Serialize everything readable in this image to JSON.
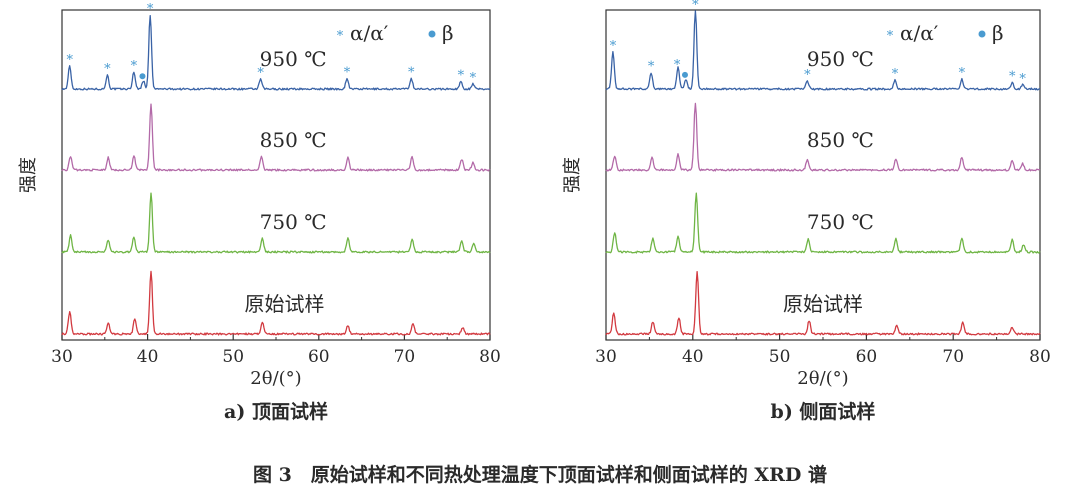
{
  "caption": "图 3　原始试样和不同热处理温度下顶面试样和侧面试样的 XRD 谱",
  "colors": {
    "950": "#3a63a6",
    "850": "#b36aa8",
    "750": "#6fb545",
    "original": "#d23a40",
    "marker": "#4a9bd0"
  },
  "chart_data": [
    {
      "type": "line",
      "panel_label": "a) 顶面试样",
      "xlabel": "2θ/(°)",
      "ylabel": "强度",
      "xlim": [
        30,
        80
      ],
      "x_ticks": [
        30,
        40,
        50,
        60,
        70,
        80
      ],
      "y_ticks": [],
      "grid": false,
      "legend": {
        "position": "top-right",
        "entries": [
          {
            "symbol": "*",
            "label": "α/α′"
          },
          {
            "symbol": "●",
            "label": "β"
          }
        ]
      },
      "series": [
        {
          "name": "950 ℃",
          "color": "#3a63a6",
          "label_x": 57,
          "peaks": [
            [
              30.9,
              0.28
            ],
            [
              35.3,
              0.17
            ],
            [
              38.4,
              0.21
            ],
            [
              39.5,
              0.1
            ],
            [
              40.3,
              0.9
            ],
            [
              53.2,
              0.12
            ],
            [
              63.3,
              0.13
            ],
            [
              70.8,
              0.13
            ],
            [
              76.6,
              0.09
            ],
            [
              78.0,
              0.06
            ]
          ]
        },
        {
          "name": "850 ℃",
          "color": "#b36aa8",
          "label_x": 57,
          "peaks": [
            [
              31.0,
              0.17
            ],
            [
              35.4,
              0.15
            ],
            [
              38.4,
              0.18
            ],
            [
              40.4,
              0.8
            ],
            [
              53.3,
              0.16
            ],
            [
              63.4,
              0.15
            ],
            [
              70.9,
              0.16
            ],
            [
              76.7,
              0.13
            ],
            [
              78.0,
              0.09
            ]
          ]
        },
        {
          "name": "750 ℃",
          "color": "#6fb545",
          "label_x": 57,
          "peaks": [
            [
              31.0,
              0.2
            ],
            [
              35.4,
              0.15
            ],
            [
              38.4,
              0.19
            ],
            [
              40.4,
              0.72
            ],
            [
              53.4,
              0.17
            ],
            [
              63.4,
              0.17
            ],
            [
              70.9,
              0.16
            ],
            [
              76.7,
              0.13
            ],
            [
              78.1,
              0.1
            ]
          ]
        },
        {
          "name": "原始试样",
          "color": "#d23a40",
          "label_x": 56,
          "peaks": [
            [
              30.9,
              0.27
            ],
            [
              35.4,
              0.14
            ],
            [
              38.5,
              0.18
            ],
            [
              40.4,
              0.77
            ],
            [
              53.4,
              0.14
            ],
            [
              63.4,
              0.1
            ],
            [
              71.0,
              0.12
            ],
            [
              76.8,
              0.08
            ]
          ]
        }
      ],
      "phase_markers": [
        {
          "x": 30.9,
          "symbol": "*"
        },
        {
          "x": 35.3,
          "symbol": "*"
        },
        {
          "x": 38.4,
          "symbol": "*"
        },
        {
          "x": 39.4,
          "symbol": "●"
        },
        {
          "x": 40.3,
          "symbol": "*"
        },
        {
          "x": 53.2,
          "symbol": "*"
        },
        {
          "x": 63.3,
          "symbol": "*"
        },
        {
          "x": 70.8,
          "symbol": "*"
        },
        {
          "x": 76.6,
          "symbol": "*"
        },
        {
          "x": 78.0,
          "symbol": "*"
        }
      ]
    },
    {
      "type": "line",
      "panel_label": "b) 侧面试样",
      "xlabel": "2θ/(°)",
      "ylabel": "强度",
      "xlim": [
        30,
        80
      ],
      "x_ticks": [
        30,
        40,
        50,
        60,
        70,
        80
      ],
      "y_ticks": [],
      "grid": false,
      "legend": {
        "position": "top-right",
        "entries": [
          {
            "symbol": "*",
            "label": "α/α′"
          },
          {
            "symbol": "●",
            "label": "β"
          }
        ]
      },
      "series": [
        {
          "name": "950 ℃",
          "color": "#3a63a6",
          "label_x": 57,
          "peaks": [
            [
              30.8,
              0.45
            ],
            [
              35.2,
              0.2
            ],
            [
              38.3,
              0.27
            ],
            [
              39.2,
              0.12
            ],
            [
              40.3,
              0.95
            ],
            [
              53.2,
              0.1
            ],
            [
              63.3,
              0.11
            ],
            [
              71.0,
              0.12
            ],
            [
              76.8,
              0.08
            ],
            [
              78.0,
              0.05
            ]
          ]
        },
        {
          "name": "850 ℃",
          "color": "#b36aa8",
          "label_x": 57,
          "peaks": [
            [
              31.0,
              0.17
            ],
            [
              35.3,
              0.15
            ],
            [
              38.3,
              0.19
            ],
            [
              40.3,
              0.82
            ],
            [
              53.2,
              0.13
            ],
            [
              63.4,
              0.14
            ],
            [
              71.0,
              0.16
            ],
            [
              76.8,
              0.12
            ],
            [
              78.0,
              0.08
            ]
          ]
        },
        {
          "name": "750 ℃",
          "color": "#6fb545",
          "label_x": 57,
          "peaks": [
            [
              31.0,
              0.24
            ],
            [
              35.4,
              0.16
            ],
            [
              38.3,
              0.2
            ],
            [
              40.4,
              0.72
            ],
            [
              53.3,
              0.16
            ],
            [
              63.4,
              0.16
            ],
            [
              71.0,
              0.17
            ],
            [
              76.8,
              0.15
            ],
            [
              78.1,
              0.09
            ]
          ]
        },
        {
          "name": "原始试样",
          "color": "#d23a40",
          "label_x": 55,
          "peaks": [
            [
              30.9,
              0.26
            ],
            [
              35.4,
              0.15
            ],
            [
              38.4,
              0.2
            ],
            [
              40.5,
              0.77
            ],
            [
              53.4,
              0.16
            ],
            [
              63.5,
              0.11
            ],
            [
              71.1,
              0.14
            ],
            [
              76.8,
              0.08
            ]
          ]
        }
      ],
      "phase_markers": [
        {
          "x": 30.8,
          "symbol": "*"
        },
        {
          "x": 35.2,
          "symbol": "*"
        },
        {
          "x": 38.2,
          "symbol": "*"
        },
        {
          "x": 39.1,
          "symbol": "●"
        },
        {
          "x": 40.3,
          "symbol": "*"
        },
        {
          "x": 53.2,
          "symbol": "*"
        },
        {
          "x": 63.3,
          "symbol": "*"
        },
        {
          "x": 71.0,
          "symbol": "*"
        },
        {
          "x": 76.8,
          "symbol": "*"
        },
        {
          "x": 78.0,
          "symbol": "*"
        }
      ]
    }
  ]
}
